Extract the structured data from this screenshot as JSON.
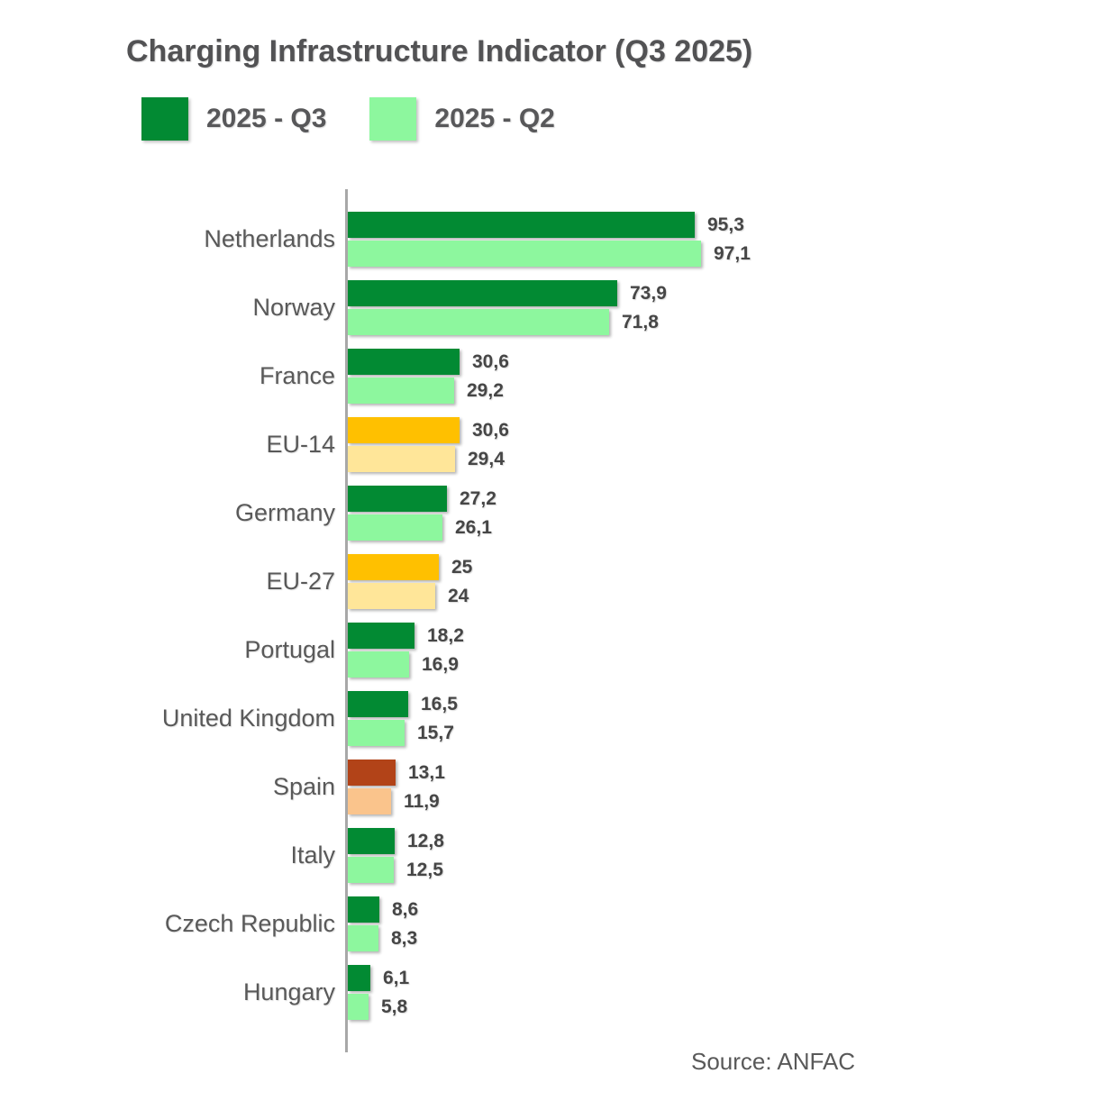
{
  "chart_data": {
    "type": "bar",
    "orientation": "horizontal",
    "title": "Charging Infrastructure Indicator (Q3 2025)",
    "source": "Source: ANFAC",
    "legend_position": "top-left",
    "grid": false,
    "xlim": [
      0,
      100
    ],
    "axis_color": "#a8a8a8",
    "series": [
      {
        "name": "2025 - Q3"
      },
      {
        "name": "2025 - Q2"
      }
    ],
    "palettes": {
      "green": {
        "q3": "#028a33",
        "q2": "#8df79e"
      },
      "gold": {
        "q3": "#ffc000",
        "q2": "#ffe699"
      },
      "rust": {
        "q3": "#b24318",
        "q2": "#fac48c"
      }
    },
    "rows": [
      {
        "category": "Netherlands",
        "q3": 95.3,
        "q2": 97.1,
        "q3_label": "95,3",
        "q2_label": "97,1",
        "palette": "green"
      },
      {
        "category": "Norway",
        "q3": 73.9,
        "q2": 71.8,
        "q3_label": "73,9",
        "q2_label": "71,8",
        "palette": "green"
      },
      {
        "category": "France",
        "q3": 30.6,
        "q2": 29.2,
        "q3_label": "30,6",
        "q2_label": "29,2",
        "palette": "green"
      },
      {
        "category": "EU-14",
        "q3": 30.6,
        "q2": 29.4,
        "q3_label": "30,6",
        "q2_label": "29,4",
        "palette": "gold"
      },
      {
        "category": "Germany",
        "q3": 27.2,
        "q2": 26.1,
        "q3_label": "27,2",
        "q2_label": "26,1",
        "palette": "green"
      },
      {
        "category": "EU-27",
        "q3": 25,
        "q2": 24,
        "q3_label": "25",
        "q2_label": "24",
        "palette": "gold"
      },
      {
        "category": "Portugal",
        "q3": 18.2,
        "q2": 16.9,
        "q3_label": "18,2",
        "q2_label": "16,9",
        "palette": "green"
      },
      {
        "category": "United Kingdom",
        "q3": 16.5,
        "q2": 15.7,
        "q3_label": "16,5",
        "q2_label": "15,7",
        "palette": "green"
      },
      {
        "category": "Spain",
        "q3": 13.1,
        "q2": 11.9,
        "q3_label": "13,1",
        "q2_label": "11,9",
        "palette": "rust"
      },
      {
        "category": "Italy",
        "q3": 12.8,
        "q2": 12.5,
        "q3_label": "12,8",
        "q2_label": "12,5",
        "palette": "green"
      },
      {
        "category": "Czech Republic",
        "q3": 8.6,
        "q2": 8.3,
        "q3_label": "8,6",
        "q2_label": "8,3",
        "palette": "green"
      },
      {
        "category": "Hungary",
        "q3": 6.1,
        "q2": 5.8,
        "q3_label": "6,1",
        "q2_label": "5,8",
        "palette": "green"
      }
    ]
  }
}
